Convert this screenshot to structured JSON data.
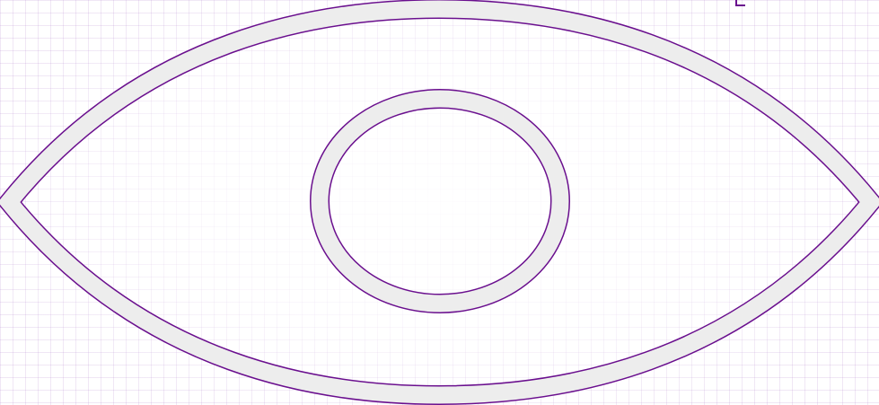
{
  "icon": {
    "name": "eye-icon",
    "stroke_color": "#ededed",
    "outline_color": "#6a0f8e",
    "background_color": "#ffffff",
    "grid_color": "#b48cd2"
  }
}
